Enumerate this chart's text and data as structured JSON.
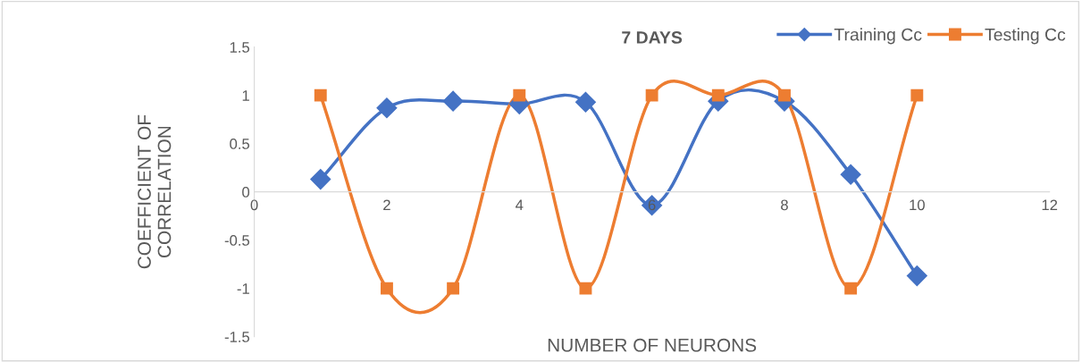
{
  "chart_data": {
    "type": "line",
    "title": "7 DAYS",
    "xlabel": "NUMBER OF NEURONS",
    "ylabel": "COEFFICIENT OF\nCORRELATION",
    "x": [
      1,
      2,
      3,
      4,
      5,
      6,
      7,
      8,
      9,
      10
    ],
    "series": [
      {
        "name": "Training Cc",
        "color": "#4472c4",
        "marker": "diamond",
        "values": [
          0.13,
          0.87,
          0.94,
          0.91,
          0.93,
          -0.14,
          0.94,
          0.94,
          0.18,
          -0.87
        ]
      },
      {
        "name": "Testing Cc",
        "color": "#ed7d31",
        "marker": "square",
        "values": [
          1,
          -1,
          -1,
          1,
          -1,
          1,
          1,
          1,
          -1,
          1
        ]
      }
    ],
    "xlim": [
      0,
      12
    ],
    "xticks": [
      0,
      2,
      4,
      6,
      8,
      10,
      12
    ],
    "ylim": [
      -1.5,
      1.5
    ],
    "yticks": [
      -1.5,
      -1,
      -0.5,
      0,
      0.5,
      1,
      1.5
    ],
    "grid": false,
    "legend": "top right",
    "line_style": "solid"
  }
}
